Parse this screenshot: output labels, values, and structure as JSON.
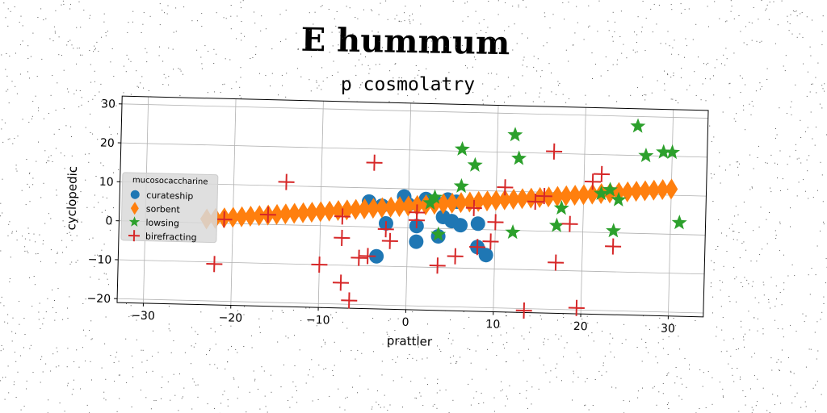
{
  "chart_data": {
    "type": "scatter",
    "title": "E hummum",
    "subtitle": "p cosmolatry",
    "xlabel": "prattler",
    "ylabel": "cyclopedic",
    "xlim": [
      -33,
      34
    ],
    "ylim": [
      -21,
      32
    ],
    "xticks": [
      -30,
      -20,
      -10,
      0,
      10,
      20,
      30
    ],
    "yticks": [
      -20,
      -10,
      0,
      10,
      20,
      30
    ],
    "xtick_labels": [
      "−30",
      "−20",
      "−10",
      "0",
      "10",
      "20",
      "30"
    ],
    "ytick_labels": [
      "−20",
      "−10",
      "0",
      "10",
      "20",
      "30"
    ],
    "grid": true,
    "legend": {
      "title": "mucosocaccharine",
      "position": "center-left"
    },
    "series": [
      {
        "name": "curateship",
        "marker": "circle",
        "color": "#1f77b4",
        "points": [
          [
            -4.5,
            6.5
          ],
          [
            -3,
            5.5
          ],
          [
            -0.5,
            8
          ],
          [
            0,
            6
          ],
          [
            2,
            7.5
          ],
          [
            3,
            7
          ],
          [
            4.5,
            7.5
          ],
          [
            5.5,
            7
          ],
          [
            4,
            3
          ],
          [
            5,
            2
          ],
          [
            -2.5,
            1
          ],
          [
            1,
            0.5
          ],
          [
            6,
            1
          ],
          [
            8,
            1.5
          ],
          [
            1,
            -3.5
          ],
          [
            3.5,
            -2
          ],
          [
            8,
            -4.5
          ],
          [
            9,
            -6.5
          ],
          [
            -3.5,
            -7.5
          ]
        ]
      },
      {
        "name": "sorbent",
        "marker": "diamond",
        "color": "#ff7f0e",
        "points": [
          [
            -23,
            1
          ],
          [
            -22,
            1.2
          ],
          [
            -21,
            1.4
          ],
          [
            -20,
            1.6
          ],
          [
            -19,
            1.8
          ],
          [
            -18,
            2
          ],
          [
            -17,
            2.2
          ],
          [
            -16,
            2.4
          ],
          [
            -15,
            2.6
          ],
          [
            -14,
            2.8
          ],
          [
            -13,
            3
          ],
          [
            -12,
            3.2
          ],
          [
            -11,
            3.4
          ],
          [
            -10,
            3.6
          ],
          [
            -9,
            3.8
          ],
          [
            -8,
            4
          ],
          [
            -7,
            4.2
          ],
          [
            -6,
            4.4
          ],
          [
            -5,
            4.6
          ],
          [
            -4,
            4.8
          ],
          [
            -3,
            5
          ],
          [
            -2,
            5.2
          ],
          [
            -1,
            5.4
          ],
          [
            0,
            5.6
          ],
          [
            1,
            5.8
          ],
          [
            2,
            6
          ],
          [
            3,
            6.2
          ],
          [
            4,
            6.4
          ],
          [
            5,
            6.6
          ],
          [
            6,
            6.8
          ],
          [
            7,
            7
          ],
          [
            8,
            7.2
          ],
          [
            9,
            7.4
          ],
          [
            10,
            7.6
          ],
          [
            11,
            7.8
          ],
          [
            12,
            8
          ],
          [
            13,
            8.2
          ],
          [
            14,
            8.4
          ],
          [
            15,
            8.6
          ],
          [
            16,
            8.8
          ],
          [
            17,
            9
          ],
          [
            18,
            9.2
          ],
          [
            19,
            9.4
          ],
          [
            20,
            9.6
          ],
          [
            21,
            9.8
          ],
          [
            22,
            10
          ],
          [
            23,
            10.2
          ],
          [
            24,
            10.4
          ],
          [
            25,
            10.6
          ],
          [
            26,
            10.8
          ],
          [
            27,
            11
          ],
          [
            28,
            11.2
          ],
          [
            29,
            11.4
          ],
          [
            30,
            11.6
          ]
        ]
      },
      {
        "name": "lowsing",
        "marker": "star",
        "color": "#2ca02c",
        "points": [
          [
            6,
            20.5
          ],
          [
            7.5,
            16.5
          ],
          [
            6,
            11
          ],
          [
            3,
            8
          ],
          [
            2.5,
            6.5
          ],
          [
            3.5,
            -1.5
          ],
          [
            12,
            24.5
          ],
          [
            12.5,
            18.5
          ],
          [
            12,
            -0.5
          ],
          [
            17,
            1.5
          ],
          [
            17.5,
            6
          ],
          [
            22,
            10
          ],
          [
            23,
            11
          ],
          [
            24,
            8.5
          ],
          [
            23.5,
            0.5
          ],
          [
            26,
            27.5
          ],
          [
            27,
            20
          ],
          [
            29,
            21
          ],
          [
            30,
            21
          ],
          [
            31,
            3
          ]
        ]
      },
      {
        "name": "birefracting",
        "marker": "plus",
        "color": "#d62728",
        "points": [
          [
            -22,
            -10.5
          ],
          [
            -21,
            1
          ],
          [
            -16,
            2.5
          ],
          [
            -14,
            11
          ],
          [
            -10,
            -10
          ],
          [
            -7.5,
            2.5
          ],
          [
            -7.5,
            -3
          ],
          [
            -7.5,
            -14.5
          ],
          [
            -6.5,
            -19
          ],
          [
            -5.5,
            -8
          ],
          [
            -4.5,
            -7.5
          ],
          [
            -4,
            16.5
          ],
          [
            -2.5,
            -0.5
          ],
          [
            -2,
            -3.5
          ],
          [
            1,
            4
          ],
          [
            1,
            2
          ],
          [
            3.5,
            -9.5
          ],
          [
            5.5,
            -7
          ],
          [
            7.5,
            5.5
          ],
          [
            8,
            -4.5
          ],
          [
            9.5,
            -3
          ],
          [
            10,
            2
          ],
          [
            11,
            11
          ],
          [
            13.5,
            -20.5
          ],
          [
            14.5,
            7.5
          ],
          [
            15.5,
            9
          ],
          [
            16.5,
            20.5
          ],
          [
            17,
            -8
          ],
          [
            18.5,
            2
          ],
          [
            19.5,
            -19.5
          ],
          [
            21,
            13
          ],
          [
            22,
            15
          ],
          [
            23.5,
            -3.5
          ]
        ]
      }
    ]
  }
}
